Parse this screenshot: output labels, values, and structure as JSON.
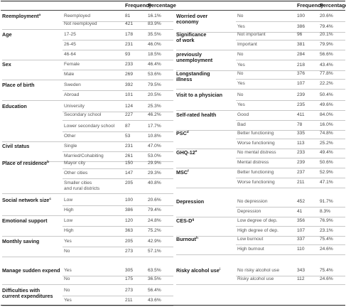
{
  "header": {
    "frequency": "Frequency",
    "percentage": "Percentage"
  },
  "left": [
    {
      "label": "Reemployment",
      "sup": "a",
      "rows": [
        {
          "cat": "Reemployed",
          "freq": "81",
          "pct": "16.1%"
        },
        {
          "cat": "Not reemployed",
          "freq": "421",
          "pct": "83.9%"
        }
      ]
    },
    {
      "label": "Age",
      "sup": "",
      "rows": [
        {
          "cat": "17-25",
          "freq": "178",
          "pct": "35.5%"
        },
        {
          "cat": "26-45",
          "freq": "231",
          "pct": "46.0%"
        },
        {
          "cat": "46-64",
          "freq": "93",
          "pct": "18.5%"
        }
      ]
    },
    {
      "label": "Sex",
      "sup": "",
      "rows": [
        {
          "cat": "Female",
          "freq": "233",
          "pct": "46.4%"
        },
        {
          "cat": "Male",
          "freq": "269",
          "pct": "53.6%"
        }
      ]
    },
    {
      "label": "Place of birth",
      "sup": "",
      "rows": [
        {
          "cat": "Sweden",
          "freq": "392",
          "pct": "79.5%"
        },
        {
          "cat": "Abroad",
          "freq": "101",
          "pct": "20.5%"
        }
      ]
    },
    {
      "label": "Education",
      "sup": "",
      "rows": [
        {
          "cat": "University",
          "freq": "124",
          "pct": "25.3%"
        },
        {
          "cat": "Secondary school",
          "freq": "227",
          "pct": "46.2%"
        },
        {
          "cat": "Lower secondary school",
          "freq": "87",
          "pct": "17.7%"
        },
        {
          "cat": "Other",
          "freq": "53",
          "pct": "10.8%"
        }
      ]
    },
    {
      "label": "Civil status",
      "sup": "",
      "rows": [
        {
          "cat": "Single",
          "freq": "231",
          "pct": "47.0%"
        },
        {
          "cat": "Married/Cohabiting",
          "freq": "261",
          "pct": "53.0%"
        }
      ]
    },
    {
      "label": "Place of residence",
      "sup": "b",
      "rows": [
        {
          "cat": "Mayor city",
          "freq": "150",
          "pct": "29.9%"
        },
        {
          "cat": "Other cities",
          "freq": "147",
          "pct": "29.3%"
        },
        {
          "cat": "Smaller cities",
          "cat2": "and rural districts",
          "freq": "205",
          "pct": "40.8%"
        }
      ]
    },
    {
      "label": "Social network size",
      "sup": "c",
      "rows": [
        {
          "cat": "Low",
          "freq": "100",
          "pct": "20.6%"
        },
        {
          "cat": "High",
          "freq": "386",
          "pct": "79.4%"
        }
      ]
    },
    {
      "label": "Emotional support",
      "sup": "",
      "rows": [
        {
          "cat": "Low",
          "freq": "120",
          "pct": "24.8%"
        },
        {
          "cat": "High",
          "freq": "363",
          "pct": "75.2%"
        }
      ]
    },
    {
      "label": "Monthly saving",
      "sup": "",
      "rows": [
        {
          "cat": "Yes",
          "freq": "205",
          "pct": "42.9%"
        },
        {
          "cat": "No",
          "freq": "273",
          "pct": "57.1%"
        }
      ]
    },
    {
      "label": "Manage sudden expend",
      "sup": "",
      "rows": [
        {
          "cat": "Yes",
          "freq": "305",
          "pct": "63.5%"
        },
        {
          "cat": "No",
          "freq": "175",
          "pct": "36.5%"
        }
      ]
    },
    {
      "label": "Difficulties with",
      "label2": "current expenditures",
      "sup": "",
      "rows": [
        {
          "cat": "No",
          "freq": "273",
          "pct": "56.4%"
        },
        {
          "cat": "Yes",
          "freq": "211",
          "pct": "43.6%"
        }
      ]
    }
  ],
  "right": [
    {
      "label": "Worried over",
      "label2": "economy",
      "sup": "",
      "rows": [
        {
          "cat": "No",
          "freq": "100",
          "pct": "20.6%"
        },
        {
          "cat": "Yes",
          "freq": "386",
          "pct": "79.4%"
        }
      ]
    },
    {
      "label": "Significance",
      "label2": "of work",
      "sup": "",
      "rows": [
        {
          "cat": "Not important",
          "freq": "96",
          "pct": "20.1%"
        },
        {
          "cat": "Important",
          "freq": "381",
          "pct": "79.9%"
        }
      ]
    },
    {
      "label": "previously",
      "label2": "unemployment",
      "sup": "",
      "rows": [
        {
          "cat": "No",
          "freq": "284",
          "pct": "56.6%"
        },
        {
          "cat": "Yes",
          "freq": "218",
          "pct": "43.4%"
        }
      ]
    },
    {
      "label": "Longstanding",
      "label2": "illness",
      "sup": "",
      "rows": [
        {
          "cat": "No",
          "freq": "376",
          "pct": "77.8%"
        },
        {
          "cat": "Yes",
          "freq": "107",
          "pct": "22.2%"
        }
      ]
    },
    {
      "label": "Visit to a physician",
      "sup": "",
      "rows": [
        {
          "cat": "No",
          "freq": "239",
          "pct": "50.4%"
        },
        {
          "cat": "Yes",
          "freq": "235",
          "pct": "49.6%"
        }
      ]
    },
    {
      "label": "Self-rated health",
      "sup": "",
      "rows": [
        {
          "cat": "Good",
          "freq": "411",
          "pct": "84.0%"
        },
        {
          "cat": "Bad",
          "freq": "78",
          "pct": "16.0%"
        }
      ]
    },
    {
      "label": "PSC",
      "sup": "d",
      "rows": [
        {
          "cat": "Better functioning",
          "freq": "335",
          "pct": "74.8%"
        },
        {
          "cat": "Worse functioning",
          "freq": "113",
          "pct": "25.2%"
        }
      ]
    },
    {
      "label": "GHQ-12",
      "sup": "e",
      "rows": [
        {
          "cat": "No mental distress",
          "freq": "233",
          "pct": "49.4%"
        },
        {
          "cat": "Mental distress",
          "freq": "239",
          "pct": "50.6%"
        }
      ]
    },
    {
      "label": "MSC",
      "sup": "f",
      "rows": [
        {
          "cat": "Better functioning",
          "freq": "237",
          "pct": "52.9%"
        },
        {
          "cat": "Worse functioning",
          "freq": "211",
          "pct": "47.1%"
        }
      ]
    },
    {
      "label": "Depression",
      "sup": "",
      "rows": [
        {
          "cat": "No depression",
          "freq": "452",
          "pct": "91.7%"
        },
        {
          "cat": "Depression",
          "freq": "41",
          "pct": "8.3%"
        }
      ]
    },
    {
      "label": "CES-D",
      "sup": "g",
      "rows": [
        {
          "cat": "Low degree of dep.",
          "freq": "356",
          "pct": "76.9%"
        },
        {
          "cat": "High degree of dep.",
          "freq": "107",
          "pct": "23.1%"
        }
      ]
    },
    {
      "label": "Burnout",
      "sup": "h",
      "rows": [
        {
          "cat": "Low burnout",
          "freq": "337",
          "pct": "75.4%"
        },
        {
          "cat": "High burnout",
          "freq": "110",
          "pct": "24.6%"
        }
      ]
    },
    {
      "label": "Risky alcohol use",
      "sup": "i",
      "rows": [
        {
          "cat": "No risky alcohol use",
          "freq": "343",
          "pct": "75.4%"
        },
        {
          "cat": "Risky alcohol use",
          "freq": "112",
          "pct": "24.6%"
        }
      ]
    }
  ]
}
